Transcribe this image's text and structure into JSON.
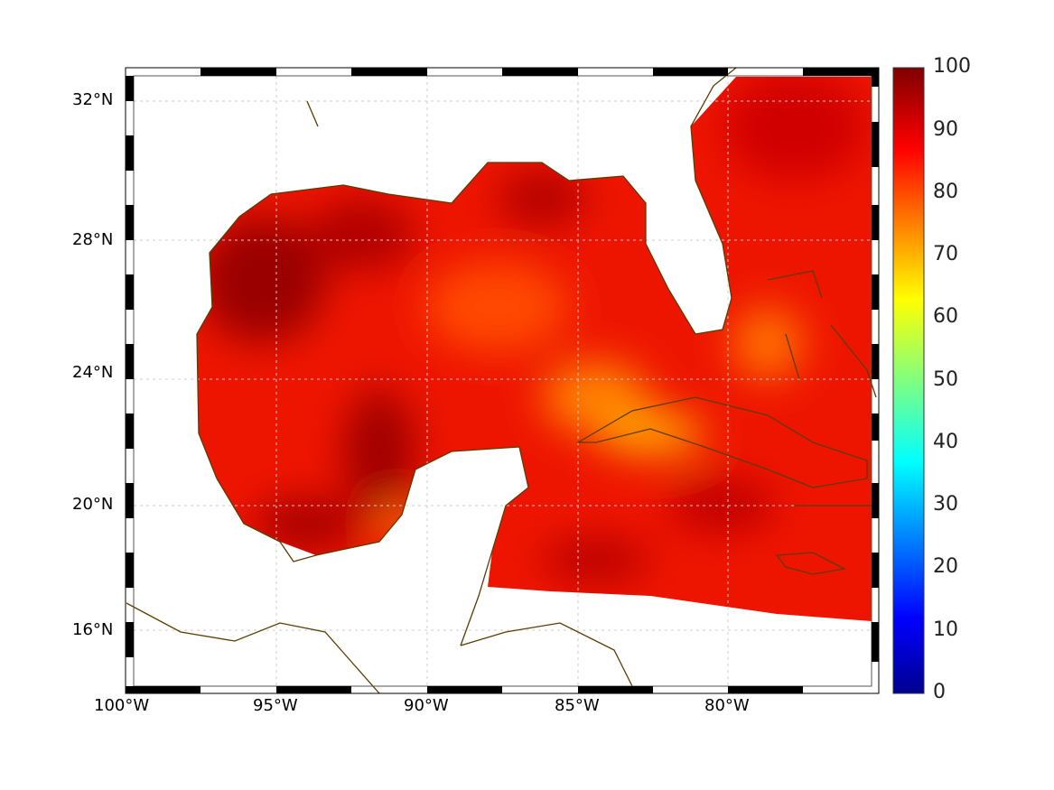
{
  "chart_data": {
    "type": "heatmap",
    "title": "",
    "lon_range": [
      -100,
      -75
    ],
    "lat_range": [
      14.2,
      33
    ],
    "x_ticks": [
      "100°W",
      "95°W",
      "90°W",
      "85°W",
      "80°W"
    ],
    "y_ticks": [
      "32°N",
      "28°N",
      "24°N",
      "20°N",
      "16°N"
    ],
    "colorbar": {
      "colormap": "jet",
      "range": [
        0,
        100
      ],
      "ticks": [
        "100",
        "90",
        "80",
        "70",
        "60",
        "50",
        "40",
        "30",
        "20",
        "10",
        "0"
      ]
    },
    "field_summary": "Values mostly 75-100 over Gulf of Mexico and Caribbean; highest (~95-100) in western Gulf and Atlantic off Florida; ~70 near Cuba",
    "grid": true
  },
  "colors": {
    "coast": "#5a3d00",
    "high": "#8b0000",
    "mid": "#ff2000",
    "low": "#ffa000"
  }
}
